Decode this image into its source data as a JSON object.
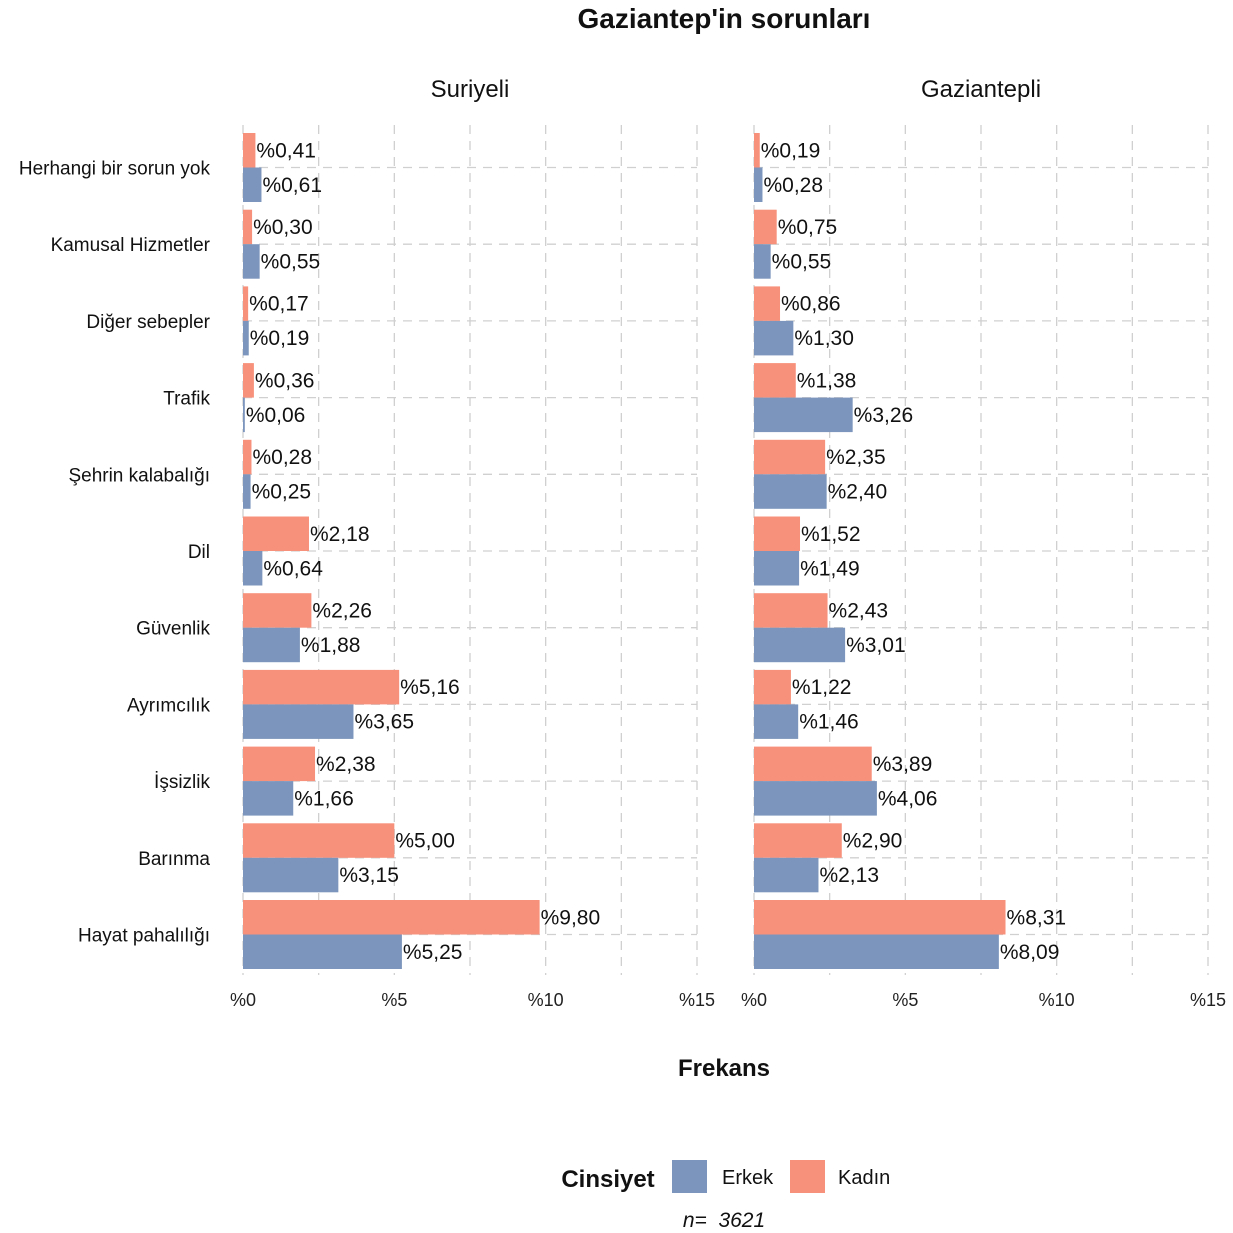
{
  "chart_data": {
    "type": "bar",
    "orientation": "horizontal",
    "title": "Gaziantep'in sorunları",
    "xlabel": "Frekans",
    "legend_title": "Cinsiyet",
    "legend_position": "bottom",
    "caption": "n=  3621",
    "value_prefix": "%",
    "xlim": [
      0,
      15
    ],
    "x_ticks": [
      0,
      5,
      10,
      15
    ],
    "x_tick_labels": [
      "%0",
      "%5",
      "%10",
      "%15"
    ],
    "grid": true,
    "categories": [
      "Herhangi bir sorun yok",
      "Kamusal Hizmetler",
      "Diğer sebepler",
      "Trafik",
      "Şehrin kalabalığı",
      "Dil",
      "Güvenlik",
      "Ayrımcılık",
      "İşsizlik",
      "Barınma",
      "Hayat pahalılığı"
    ],
    "series_names": [
      "Kadın",
      "Erkek"
    ],
    "colors": {
      "Kadın": "#f8917b",
      "Erkek": "#7b95bc"
    },
    "legend_order": [
      "Erkek",
      "Kadın"
    ],
    "facets": [
      {
        "name": "Suriyeli",
        "series": [
          {
            "name": "Kadın",
            "values": [
              0.41,
              0.3,
              0.17,
              0.36,
              0.28,
              2.18,
              2.26,
              5.16,
              2.38,
              5.0,
              9.8
            ],
            "labels": [
              "%0,41",
              "%0,30",
              "%0,17",
              "%0,36",
              "%0,28",
              "%2,18",
              "%2,26",
              "%5,16",
              "%2,38",
              "%5,00",
              "%9,80"
            ]
          },
          {
            "name": "Erkek",
            "values": [
              0.61,
              0.55,
              0.19,
              0.06,
              0.25,
              0.64,
              1.88,
              3.65,
              1.66,
              3.15,
              5.25
            ],
            "labels": [
              "%0,61",
              "%0,55",
              "%0,19",
              "%0,06",
              "%0,25",
              "%0,64",
              "%1,88",
              "%3,65",
              "%1,66",
              "%3,15",
              "%5,25"
            ]
          }
        ]
      },
      {
        "name": "Gaziantepli",
        "series": [
          {
            "name": "Kadın",
            "values": [
              0.19,
              0.75,
              0.86,
              1.38,
              2.35,
              1.52,
              2.43,
              1.22,
              3.89,
              2.9,
              8.31
            ],
            "labels": [
              "%0,19",
              "%0,75",
              "%0,86",
              "%1,38",
              "%2,35",
              "%1,52",
              "%2,43",
              "%1,22",
              "%3,89",
              "%2,90",
              "%8,31"
            ]
          },
          {
            "name": "Erkek",
            "values": [
              0.28,
              0.55,
              1.3,
              3.26,
              2.4,
              1.49,
              3.01,
              1.46,
              4.06,
              2.13,
              8.09
            ],
            "labels": [
              "%0,28",
              "%0,55",
              "%1,30",
              "%3,26",
              "%2,40",
              "%1,49",
              "%3,01",
              "%1,46",
              "%4,06",
              "%2,13",
              "%8,09"
            ]
          }
        ]
      }
    ]
  }
}
